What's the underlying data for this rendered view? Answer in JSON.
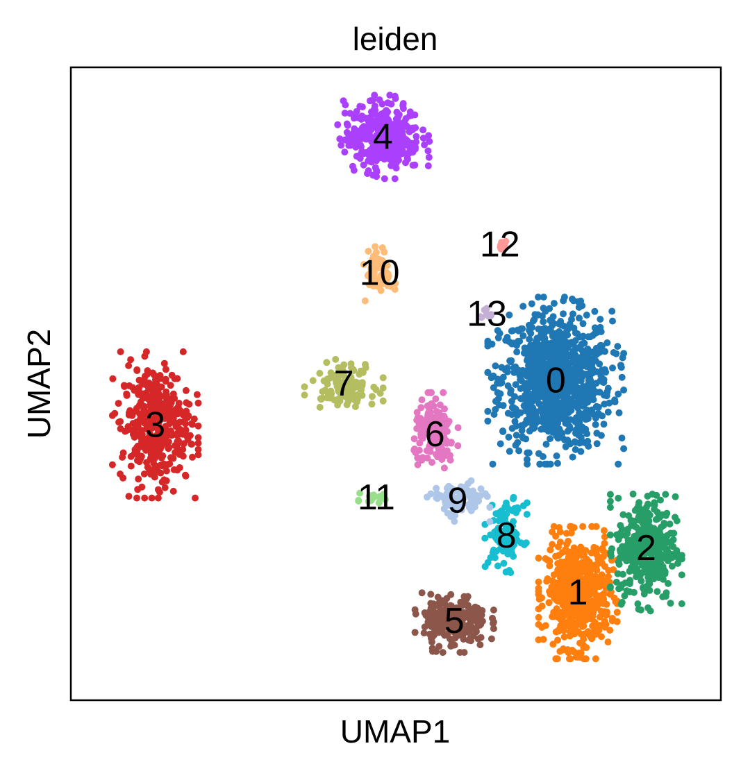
{
  "chart_data": {
    "type": "scatter",
    "title": "leiden",
    "xlabel": "UMAP1",
    "ylabel": "UMAP2",
    "xlim": [
      0,
      10
    ],
    "ylim": [
      0,
      10
    ],
    "grid": false,
    "ticks": false,
    "legend": "on data",
    "clusters": [
      {
        "name": "0",
        "color": "#1f77b4",
        "center": [
          7.46,
          5.05
        ],
        "spread": [
          0.95,
          1.2
        ],
        "n": 900
      },
      {
        "name": "1",
        "color": "#ff7f0e",
        "center": [
          7.8,
          1.7
        ],
        "spread": [
          0.55,
          0.95
        ],
        "n": 550
      },
      {
        "name": "2",
        "color": "#279e68",
        "center": [
          8.85,
          2.4
        ],
        "spread": [
          0.5,
          0.9
        ],
        "n": 380
      },
      {
        "name": "3",
        "color": "#d62728",
        "center": [
          1.3,
          4.35
        ],
        "spread": [
          0.6,
          1.05
        ],
        "n": 380
      },
      {
        "name": "4",
        "color": "#aa40fc",
        "center": [
          4.8,
          8.9
        ],
        "spread": [
          0.65,
          0.6
        ],
        "n": 350
      },
      {
        "name": "5",
        "color": "#8c564b",
        "center": [
          5.9,
          1.25
        ],
        "spread": [
          0.55,
          0.45
        ],
        "n": 230
      },
      {
        "name": "6",
        "color": "#e377c2",
        "center": [
          5.6,
          4.2
        ],
        "spread": [
          0.35,
          0.6
        ],
        "n": 150
      },
      {
        "name": "7",
        "color": "#b5bd61",
        "center": [
          4.2,
          5.0
        ],
        "spread": [
          0.55,
          0.35
        ],
        "n": 110
      },
      {
        "name": "8",
        "color": "#17becf",
        "center": [
          6.7,
          2.6
        ],
        "spread": [
          0.3,
          0.55
        ],
        "n": 110
      },
      {
        "name": "9",
        "color": "#aec7e8",
        "center": [
          5.95,
          3.15
        ],
        "spread": [
          0.45,
          0.3
        ],
        "n": 110
      },
      {
        "name": "10",
        "color": "#ffbb78",
        "center": [
          4.75,
          6.75
        ],
        "spread": [
          0.22,
          0.4
        ],
        "n": 60
      },
      {
        "name": "11",
        "color": "#98df8a",
        "center": [
          4.7,
          3.2
        ],
        "spread": [
          0.25,
          0.1
        ],
        "n": 18
      },
      {
        "name": "12",
        "color": "#ff9896",
        "center": [
          6.6,
          7.2
        ],
        "spread": [
          0.15,
          0.15
        ],
        "n": 10
      },
      {
        "name": "13",
        "color": "#c5b0d5",
        "center": [
          6.4,
          6.1
        ],
        "spread": [
          0.12,
          0.15
        ],
        "n": 10
      }
    ]
  }
}
